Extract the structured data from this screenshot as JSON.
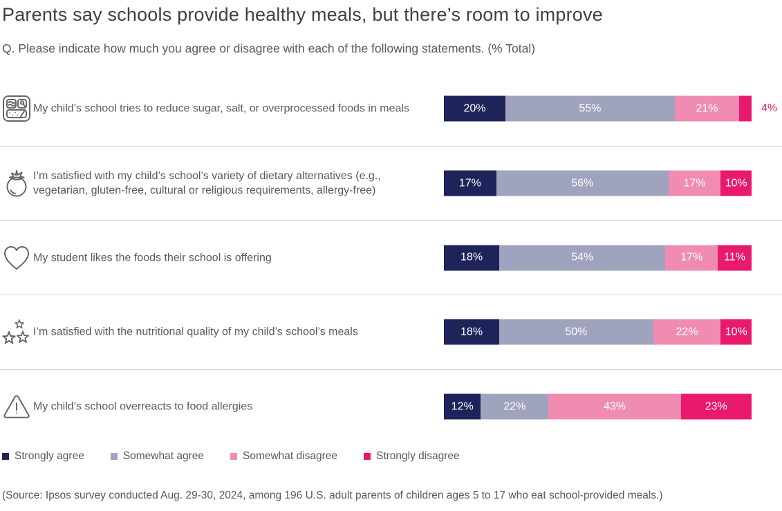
{
  "header": {
    "title": "Parents say schools provide healthy meals, but there’s room to improve",
    "subtitle": "Q. Please indicate how much you agree or disagree with each of the following statements. (% Total)"
  },
  "footer": {
    "source": "(Source: Ipsos survey conducted Aug. 29-30, 2024, among 196 U.S. adult parents of children ages 5 to 17 who eat school-provided meals.)"
  },
  "legend": [
    {
      "label": "Strongly agree",
      "color": "#1e235a"
    },
    {
      "label": "Somewhat agree",
      "color": "#9fa3bd"
    },
    {
      "label": "Somewhat disagree",
      "color": "#f08cb2"
    },
    {
      "label": "Strongly disagree",
      "color": "#e91a6d"
    }
  ],
  "chart_data": {
    "type": "bar",
    "orientation": "horizontal",
    "stacked": true,
    "value_unit": "%",
    "xlim": [
      0,
      100
    ],
    "grid": false,
    "legend_position": "bottom",
    "series": [
      "Strongly agree",
      "Somewhat agree",
      "Somewhat disagree",
      "Strongly disagree"
    ],
    "series_colors": [
      "#1e235a",
      "#9fa3bd",
      "#f08cb2",
      "#e91a6d"
    ],
    "rows": [
      {
        "icon": "meal-tray-icon",
        "statement": "My child’s school tries to reduce sugar, salt, or overprocessed foods in meals",
        "values": [
          20,
          55,
          21,
          4
        ]
      },
      {
        "icon": "tomato-icon",
        "statement": "I’m satisfied with my child’s school’s variety of dietary alternatives (e.g., vegetarian, gluten-free, cultural or religious requirements, allergy-free)",
        "values": [
          17,
          56,
          17,
          10
        ]
      },
      {
        "icon": "heart-icon",
        "statement": "My student likes the foods their school is offering",
        "values": [
          18,
          54,
          17,
          11
        ]
      },
      {
        "icon": "three-stars-icon",
        "statement": "I’m satisfied with the nutritional quality of my child’s school’s meals",
        "values": [
          18,
          50,
          22,
          10
        ]
      },
      {
        "icon": "warning-triangle-icon",
        "statement": "My child’s school overreacts to food allergies",
        "values": [
          12,
          22,
          43,
          23
        ]
      }
    ]
  }
}
